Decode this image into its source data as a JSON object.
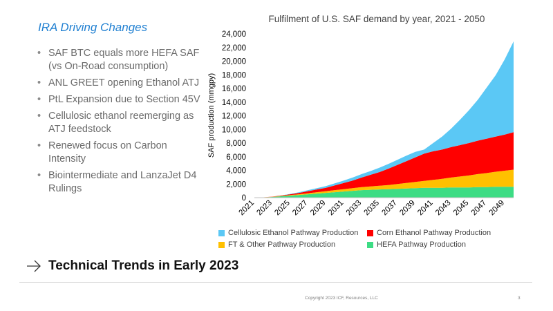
{
  "slide": {
    "left_title": "IRA Driving Changes",
    "bullets": [
      "SAF BTC equals more HEFA SAF (vs On-Road consumption)",
      "ANL GREET opening Ethanol ATJ",
      "PtL Expansion due to Section 45V",
      "Cellulosic ethanol reemerging as ATJ feedstock",
      "Renewed focus on Carbon Intensity",
      "Biointermediate and LanzaJet D4 Rulings"
    ],
    "section_title": "Technical Trends in Early 2023",
    "copyright": "Copyright 2023 ICF, Resources, LLC",
    "page_number": "3"
  },
  "chart_data": {
    "type": "area",
    "stacked": true,
    "title": "Fulfilment of U.S. SAF demand by year, 2021 - 2050",
    "xlabel": "",
    "ylabel": "SAF production (mmgpy)",
    "ylim": [
      0,
      24000
    ],
    "yticks": [
      0,
      2000,
      4000,
      6000,
      8000,
      10000,
      12000,
      14000,
      16000,
      18000,
      20000,
      22000,
      24000
    ],
    "ytick_labels": [
      "0",
      "2,000",
      "4,000",
      "6,000",
      "8,000",
      "10,000",
      "12,000",
      "14,000",
      "16,000",
      "18,000",
      "20,000",
      "22,000",
      "24,000"
    ],
    "xlim": [
      2021,
      2050
    ],
    "xtick_labels": [
      "2021",
      "2023",
      "2025",
      "2027",
      "2029",
      "2031",
      "2033",
      "2035",
      "2037",
      "2039",
      "2041",
      "2043",
      "2045",
      "2047",
      "2049"
    ],
    "x": [
      2021,
      2022,
      2023,
      2024,
      2025,
      2026,
      2027,
      2028,
      2029,
      2030,
      2031,
      2032,
      2033,
      2034,
      2035,
      2036,
      2037,
      2038,
      2039,
      2040,
      2041,
      2042,
      2043,
      2044,
      2045,
      2046,
      2047,
      2048,
      2049,
      2050
    ],
    "legend_position": "bottom",
    "series": [
      {
        "name": "HEFA Pathway Production",
        "color": "#3ddc84",
        "values": [
          0,
          40,
          100,
          200,
          300,
          400,
          500,
          600,
          700,
          800,
          900,
          1000,
          1100,
          1150,
          1200,
          1250,
          1300,
          1350,
          1400,
          1450,
          1450,
          1450,
          1500,
          1500,
          1500,
          1550,
          1550,
          1600,
          1600,
          1600
        ]
      },
      {
        "name": "FT & Other Pathway Production",
        "color": "#ffc000",
        "values": [
          0,
          10,
          30,
          50,
          80,
          100,
          150,
          200,
          250,
          300,
          350,
          400,
          450,
          500,
          550,
          600,
          700,
          800,
          900,
          1000,
          1150,
          1300,
          1450,
          1600,
          1750,
          1900,
          2050,
          2200,
          2350,
          2500
        ]
      },
      {
        "name": "Corn Ethanol Pathway Production",
        "color": "#ff0000",
        "values": [
          0,
          0,
          20,
          60,
          120,
          200,
          300,
          400,
          500,
          700,
          900,
          1100,
          1400,
          1700,
          2000,
          2400,
          2800,
          3200,
          3600,
          4000,
          4200,
          4300,
          4450,
          4600,
          4750,
          4900,
          5050,
          5150,
          5300,
          5500
        ]
      },
      {
        "name": "Cellulosic Ethanol Pathway Production",
        "color": "#5bc8f5",
        "values": [
          0,
          0,
          0,
          20,
          50,
          100,
          150,
          200,
          250,
          300,
          350,
          450,
          500,
          550,
          650,
          700,
          750,
          800,
          800,
          600,
          1200,
          1900,
          2700,
          3700,
          4800,
          6000,
          7500,
          9000,
          11000,
          13300
        ]
      }
    ]
  }
}
